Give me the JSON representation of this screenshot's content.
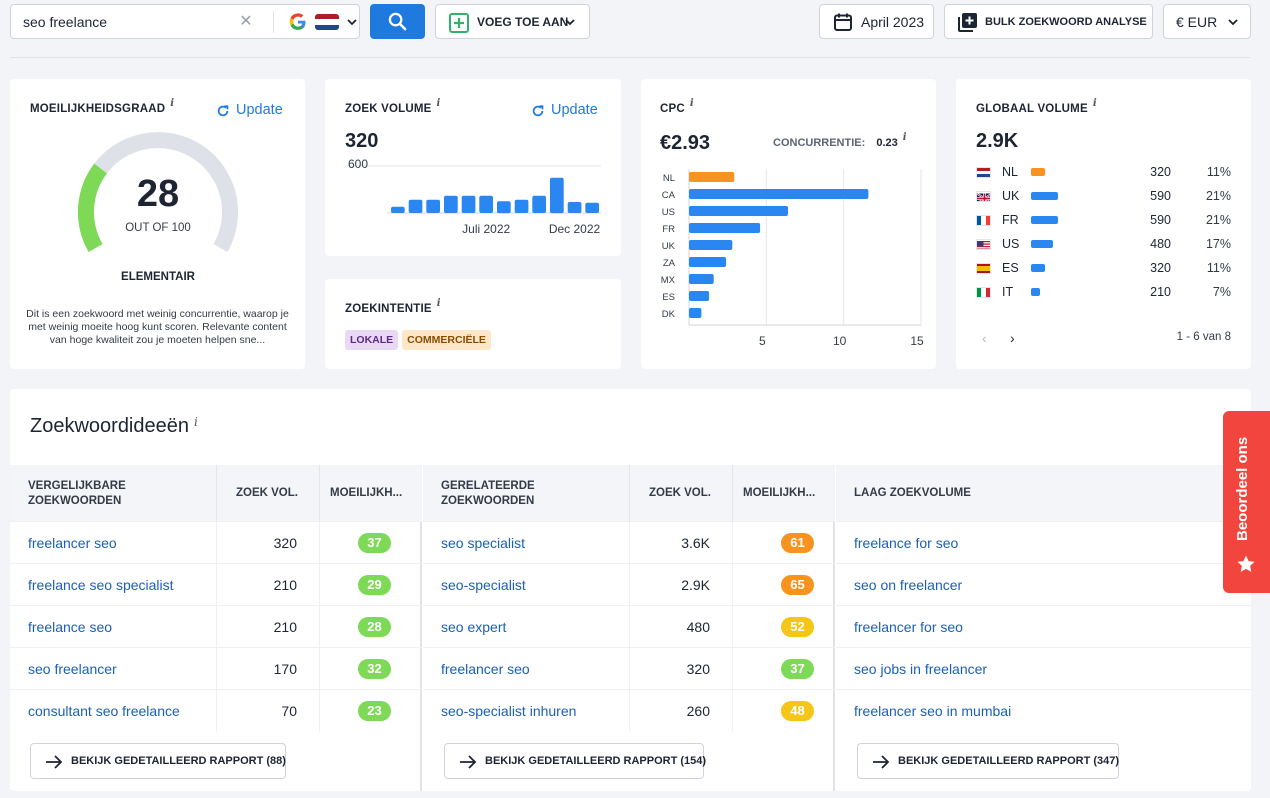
{
  "search": {
    "query": "seo freelance",
    "country_flag": "netherlands-flag",
    "engine_icon": "google-icon"
  },
  "toolbar": {
    "add_to_label": "VOEG TOE AAN",
    "date_label": "April 2023",
    "bulk_label": "BULK ZOEKWOORD ANALYSE",
    "currency_label": "€ EUR"
  },
  "difficulty": {
    "title": "MOEILIJKHEIDSGRAAD",
    "update_label": "Update",
    "score": "28",
    "score_value": 28,
    "out_of": "OUT OF 100",
    "level": "ELEMENTAIR",
    "description": "Dit is een zoekwoord met weinig concurrentie, waarop je met weinig moeite hoog kunt scoren. Relevante content van hoge kwaliteit zou je moeten helpen sne...",
    "gauge_color": "#7ed957"
  },
  "search_volume": {
    "title": "ZOEK VOLUME",
    "update_label": "Update",
    "value": "320",
    "y_tick": "600",
    "x_labels": [
      "Juli 2022",
      "Dec 2022"
    ]
  },
  "intent": {
    "title": "ZOEKINTENTIE",
    "tags": [
      {
        "label": "LOKALE",
        "bg": "#ead9f5",
        "color": "#5b2a86"
      },
      {
        "label": "COMMERCIËLE",
        "bg": "#fde7c8",
        "color": "#8a4b00"
      }
    ]
  },
  "cpc": {
    "title": "CPC",
    "value": "€2.93",
    "competition_label": "CONCURRENTIE:",
    "competition_value": "0.23"
  },
  "global_volume": {
    "title": "GLOBAAL VOLUME",
    "value": "2.9K",
    "rows": [
      {
        "code": "NL",
        "flag": "netherlands-flag",
        "volume": "320",
        "pct": "11%",
        "share": 11,
        "color": "#f7931e"
      },
      {
        "code": "UK",
        "flag": "uk-flag",
        "volume": "590",
        "pct": "21%",
        "share": 21,
        "color": "#2a86f0"
      },
      {
        "code": "FR",
        "flag": "france-flag",
        "volume": "590",
        "pct": "21%",
        "share": 21,
        "color": "#2a86f0"
      },
      {
        "code": "US",
        "flag": "usa-flag",
        "volume": "480",
        "pct": "17%",
        "share": 17,
        "color": "#2a86f0"
      },
      {
        "code": "ES",
        "flag": "spain-flag",
        "volume": "320",
        "pct": "11%",
        "share": 11,
        "color": "#2a86f0"
      },
      {
        "code": "IT",
        "flag": "italy-flag",
        "volume": "210",
        "pct": "7%",
        "share": 7,
        "color": "#2a86f0"
      }
    ],
    "pagination": "1 - 6 van 8"
  },
  "chart_data": [
    {
      "type": "bar",
      "categories": [
        "",
        "",
        "",
        "",
        "",
        "",
        "",
        "",
        "",
        "",
        "",
        ""
      ],
      "values": [
        80,
        170,
        170,
        220,
        220,
        220,
        150,
        170,
        220,
        450,
        140,
        130
      ],
      "ylim": [
        0,
        600
      ],
      "y_ticks": [
        600
      ],
      "x_tick_labels": [
        "Juli 2022",
        "Dec 2022"
      ],
      "color": "#2a86f0"
    },
    {
      "type": "bar",
      "orientation": "horizontal",
      "categories": [
        "NL",
        "CA",
        "US",
        "FR",
        "UK",
        "ZA",
        "MX",
        "ES",
        "DK"
      ],
      "values": [
        2.93,
        11.6,
        6.4,
        4.6,
        2.8,
        2.4,
        1.6,
        1.3,
        0.8
      ],
      "xlim": [
        0,
        15
      ],
      "x_ticks": [
        5,
        10,
        15
      ],
      "highlight": {
        "NL": "#f7931e"
      },
      "color": "#2a86f0"
    }
  ],
  "ideas": {
    "title": "Zoekwoordideeën",
    "blocks": [
      {
        "header_keyword": [
          "VERGELIJKBARE",
          "ZOEKWOORDEN"
        ],
        "header_volume": "ZOEK VOL.",
        "header_difficulty": "MOEILIJKH...",
        "rows": [
          {
            "keyword": "freelancer seo",
            "volume": "320",
            "kd": "37",
            "color": "#7ed957"
          },
          {
            "keyword": "freelance seo specialist",
            "volume": "210",
            "kd": "29",
            "color": "#7ed957"
          },
          {
            "keyword": "freelance seo",
            "volume": "210",
            "kd": "28",
            "color": "#7ed957"
          },
          {
            "keyword": "seo freelancer",
            "volume": "170",
            "kd": "32",
            "color": "#7ed957"
          },
          {
            "keyword": "consultant seo freelance",
            "volume": "70",
            "kd": "23",
            "color": "#7ed957"
          }
        ],
        "report_label": "BEKIJK GEDETAILLEERD RAPPORT (88)"
      },
      {
        "header_keyword": [
          "GERELATEERDE",
          "ZOEKWOORDEN"
        ],
        "header_volume": "ZOEK VOL.",
        "header_difficulty": "MOEILIJKH...",
        "rows": [
          {
            "keyword": "seo specialist",
            "volume": "3.6K",
            "kd": "61",
            "color": "#f7931e"
          },
          {
            "keyword": "seo-specialist",
            "volume": "2.9K",
            "kd": "65",
            "color": "#f7931e"
          },
          {
            "keyword": "seo expert",
            "volume": "480",
            "kd": "52",
            "color": "#f5c518"
          },
          {
            "keyword": "freelancer seo",
            "volume": "320",
            "kd": "37",
            "color": "#7ed957"
          },
          {
            "keyword": "seo-specialist inhuren",
            "volume": "260",
            "kd": "48",
            "color": "#f5c518"
          }
        ],
        "report_label": "BEKIJK GEDETAILLEERD RAPPORT (154)"
      },
      {
        "header_keyword": [
          "LAAG ZOEKVOLUME"
        ],
        "rows": [
          {
            "keyword": "freelance for seo"
          },
          {
            "keyword": "seo on freelancer"
          },
          {
            "keyword": "freelancer for seo"
          },
          {
            "keyword": "seo jobs in freelancer"
          },
          {
            "keyword": "freelancer seo in mumbai"
          }
        ],
        "report_label": "BEKIJK GEDETAILLEERD RAPPORT (347)"
      }
    ]
  },
  "feedback": {
    "label": "Beoordeel ons"
  }
}
